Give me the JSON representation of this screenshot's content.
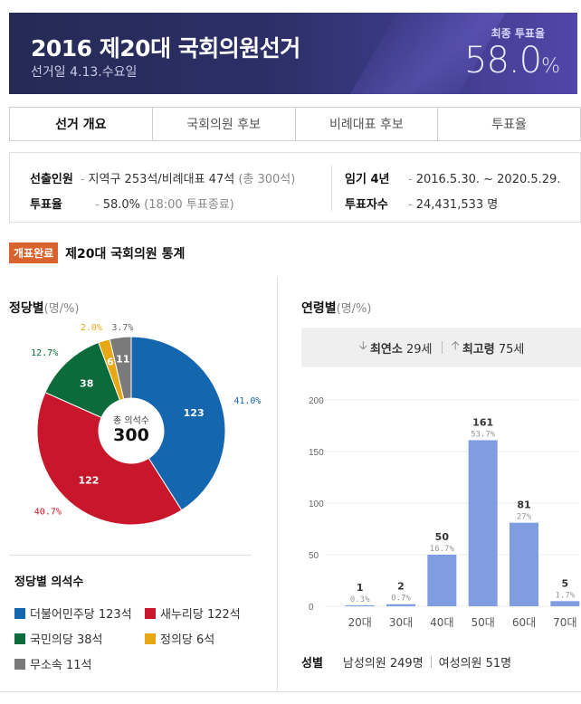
{
  "banner": {
    "title": "2016 제20대 국회의원선거",
    "subtitle": "선거일 4.13.수요일",
    "turnout_label": "최종 투표율",
    "turnout_value": "58.0",
    "turnout_unit": "%"
  },
  "tabs": [
    {
      "label": "선거 개요",
      "active": true
    },
    {
      "label": "국회의원 후보",
      "active": false
    },
    {
      "label": "비례대표 후보",
      "active": false
    },
    {
      "label": "투표율",
      "active": false
    }
  ],
  "overview": {
    "seats_key": "선출인원",
    "seats_value": "지역구 253석/비례대표 47석",
    "seats_total": "(총 300석)",
    "turnout_key": "투표율",
    "turnout_value": "58.0%",
    "turnout_note": "(18:00 투표종료)",
    "term_key": "임기 4년",
    "term_value": "2016.5.30. ~ 2020.5.29.",
    "voters_key": "투표자수",
    "voters_value": "24,431,533 명"
  },
  "section": {
    "badge": "개표완료",
    "title": "제20대 국회의원 통계"
  },
  "party_panel": {
    "title": "정당별",
    "unit": "(명/%)",
    "center_caption": "총 의석수",
    "center_value": "300",
    "legend_title": "정당별 의석수",
    "legend": [
      {
        "label": "더불어민주당 123석",
        "color": "#1466ae"
      },
      {
        "label": "새누리당 122석",
        "color": "#c8172a"
      },
      {
        "label": "국민의당 38석",
        "color": "#0b6b3a"
      },
      {
        "label": "정의당 6석",
        "color": "#e8a714"
      },
      {
        "label": "무소속 11석",
        "color": "#7a7a7a"
      }
    ]
  },
  "pie_chart_data": {
    "type": "pie",
    "slices": [
      {
        "label": "더불어민주당",
        "value": 123,
        "pct": "41.0%",
        "color": "#1466ae"
      },
      {
        "label": "새누리당",
        "value": 122,
        "pct": "40.7%",
        "color": "#c8172a"
      },
      {
        "label": "국민의당",
        "value": 38,
        "pct": "12.7%",
        "color": "#0b6b3a"
      },
      {
        "label": "정의당",
        "value": 6,
        "pct": "2.0%",
        "color": "#e8a714"
      },
      {
        "label": "무소속",
        "value": 11,
        "pct": "3.7%",
        "color": "#7a7a7a"
      }
    ],
    "total": 300
  },
  "age_panel": {
    "title": "연령별",
    "unit": "(명/%)",
    "youngest_label": "최연소",
    "youngest_value": "29세",
    "oldest_label": "최고령",
    "oldest_value": "75세",
    "gender_key": "성별",
    "male": "남성의원 249명",
    "female": "여성의원 51명"
  },
  "chart_data": {
    "type": "bar",
    "categories": [
      "20대",
      "30대",
      "40대",
      "50대",
      "60대",
      "70대"
    ],
    "values": [
      1,
      2,
      50,
      161,
      81,
      5
    ],
    "percents": [
      "0.3%",
      "0.7%",
      "16.7%",
      "53.7%",
      "27%",
      "1.7%"
    ],
    "yticks": [
      0,
      50,
      100,
      150,
      200
    ],
    "ylim": [
      0,
      200
    ],
    "bar_color": "#7f9de0"
  }
}
